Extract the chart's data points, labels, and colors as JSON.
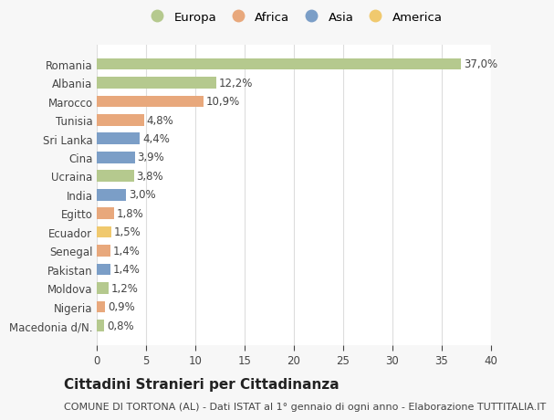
{
  "countries": [
    "Macedonia d/N.",
    "Nigeria",
    "Moldova",
    "Pakistan",
    "Senegal",
    "Ecuador",
    "Egitto",
    "India",
    "Ucraina",
    "Cina",
    "Sri Lanka",
    "Tunisia",
    "Marocco",
    "Albania",
    "Romania"
  ],
  "values": [
    0.8,
    0.9,
    1.2,
    1.4,
    1.4,
    1.5,
    1.8,
    3.0,
    3.8,
    3.9,
    4.4,
    4.8,
    10.9,
    12.2,
    37.0
  ],
  "labels": [
    "0,8%",
    "0,9%",
    "1,2%",
    "1,4%",
    "1,4%",
    "1,5%",
    "1,8%",
    "3,0%",
    "3,8%",
    "3,9%",
    "4,4%",
    "4,8%",
    "10,9%",
    "12,2%",
    "37,0%"
  ],
  "continents": [
    "Europa",
    "Africa",
    "Europa",
    "Asia",
    "Africa",
    "America",
    "Africa",
    "Asia",
    "Europa",
    "Asia",
    "Asia",
    "Africa",
    "Africa",
    "Europa",
    "Europa"
  ],
  "continent_colors": {
    "Europa": "#b5c98e",
    "Africa": "#e8a87c",
    "Asia": "#7b9ec7",
    "America": "#f0c96e"
  },
  "legend_order": [
    "Europa",
    "Africa",
    "Asia",
    "America"
  ],
  "title": "Cittadini Stranieri per Cittadinanza",
  "subtitle": "COMUNE DI TORTONA (AL) - Dati ISTAT al 1° gennaio di ogni anno - Elaborazione TUTTITALIA.IT",
  "xlim": [
    0,
    40
  ],
  "xticks": [
    0,
    5,
    10,
    15,
    20,
    25,
    30,
    35,
    40
  ],
  "background_color": "#f7f7f7",
  "bar_background": "#ffffff",
  "grid_color": "#dddddd",
  "text_color": "#444444",
  "label_fontsize": 8.5,
  "tick_fontsize": 8.5,
  "title_fontsize": 11,
  "subtitle_fontsize": 8,
  "legend_fontsize": 9.5
}
